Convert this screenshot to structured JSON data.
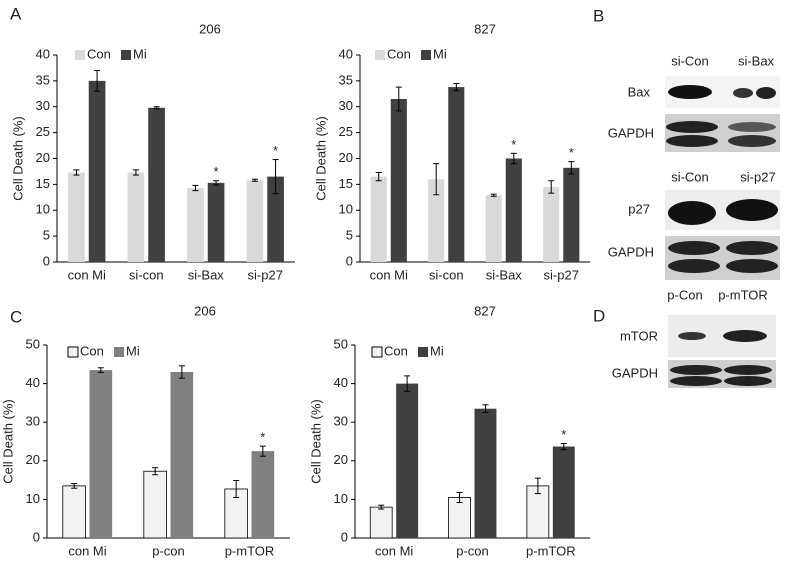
{
  "chart_data": [
    {
      "type": "bar",
      "title": "206",
      "ylabel": "Cell Death (%)",
      "categories": [
        "con Mi",
        "si-con",
        "si-Bax",
        "si-p27"
      ],
      "series": [
        {
          "name": "Con",
          "color": "#d9d9d9",
          "values": [
            17.3,
            17.3,
            14.3,
            15.8
          ],
          "errors": [
            0.5,
            0.5,
            0.5,
            0.2
          ]
        },
        {
          "name": "Mi",
          "color": "#404040",
          "values": [
            35,
            29.8,
            15.3,
            16.5
          ],
          "errors": [
            2,
            0.2,
            0.4,
            3.3
          ],
          "marks": [
            null,
            null,
            "*",
            "*"
          ]
        }
      ],
      "ylim": [
        0,
        40
      ],
      "yticks": [
        0,
        5,
        10,
        15,
        20,
        25,
        30,
        35,
        40
      ]
    },
    {
      "type": "bar",
      "title": "827",
      "ylabel": "Cell Death (%)",
      "categories": [
        "con Mi",
        "si-con",
        "si-Bax",
        "si-p27"
      ],
      "series": [
        {
          "name": "Con",
          "color": "#d9d9d9",
          "values": [
            16.5,
            16,
            12.9,
            14.5
          ],
          "errors": [
            0.8,
            3,
            0.2,
            1.2
          ]
        },
        {
          "name": "Mi",
          "color": "#404040",
          "values": [
            31.5,
            33.8,
            20,
            18.2
          ],
          "errors": [
            2.3,
            0.7,
            1,
            1.2
          ],
          "marks": [
            null,
            null,
            "*",
            "*"
          ]
        }
      ],
      "ylim": [
        0,
        40
      ],
      "yticks": [
        0,
        5,
        10,
        15,
        20,
        25,
        30,
        35,
        40
      ]
    },
    {
      "type": "bar",
      "title": "206",
      "ylabel": "Cell Death (%)",
      "categories": [
        "con Mi",
        "p-con",
        "p-mTOR"
      ],
      "series": [
        {
          "name": "Con",
          "color": "#f2f2f2",
          "edgecolor": "#000000",
          "values": [
            13.5,
            17.3,
            12.7
          ],
          "errors": [
            0.6,
            0.9,
            2.2
          ]
        },
        {
          "name": "Mi",
          "color": "#808080",
          "values": [
            43.5,
            43,
            22.5
          ],
          "errors": [
            0.6,
            1.6,
            1.3
          ],
          "marks": [
            null,
            null,
            "*"
          ]
        }
      ],
      "ylim": [
        0,
        50
      ],
      "yticks": [
        0,
        10,
        20,
        30,
        40,
        50
      ]
    },
    {
      "type": "bar",
      "title": "827",
      "ylabel": "Cell Death (%)",
      "categories": [
        "con Mi",
        "p-con",
        "p-mTOR"
      ],
      "series": [
        {
          "name": "Con",
          "color": "#f2f2f2",
          "edgecolor": "#000000",
          "values": [
            8,
            10.5,
            13.5
          ],
          "errors": [
            0.5,
            1.3,
            2
          ]
        },
        {
          "name": "Mi",
          "color": "#404040",
          "values": [
            40,
            33.5,
            23.7
          ],
          "errors": [
            2,
            1,
            0.8
          ],
          "marks": [
            null,
            null,
            "*"
          ]
        }
      ],
      "ylim": [
        0,
        50
      ],
      "yticks": [
        0,
        10,
        20,
        30,
        40,
        50
      ]
    }
  ],
  "panels": [
    "A",
    "B",
    "C",
    "D"
  ],
  "blot_B": {
    "top": {
      "lanes": [
        "si-Con",
        "si-Bax"
      ],
      "rows": [
        "Bax",
        "GAPDH"
      ]
    },
    "bottom": {
      "lanes": [
        "si-Con",
        "si-p27"
      ],
      "rows": [
        "p27",
        "GAPDH"
      ]
    }
  },
  "blot_D": {
    "lanes": [
      "p-Con",
      "p-mTOR"
    ],
    "rows": [
      "mTOR",
      "GAPDH"
    ]
  }
}
